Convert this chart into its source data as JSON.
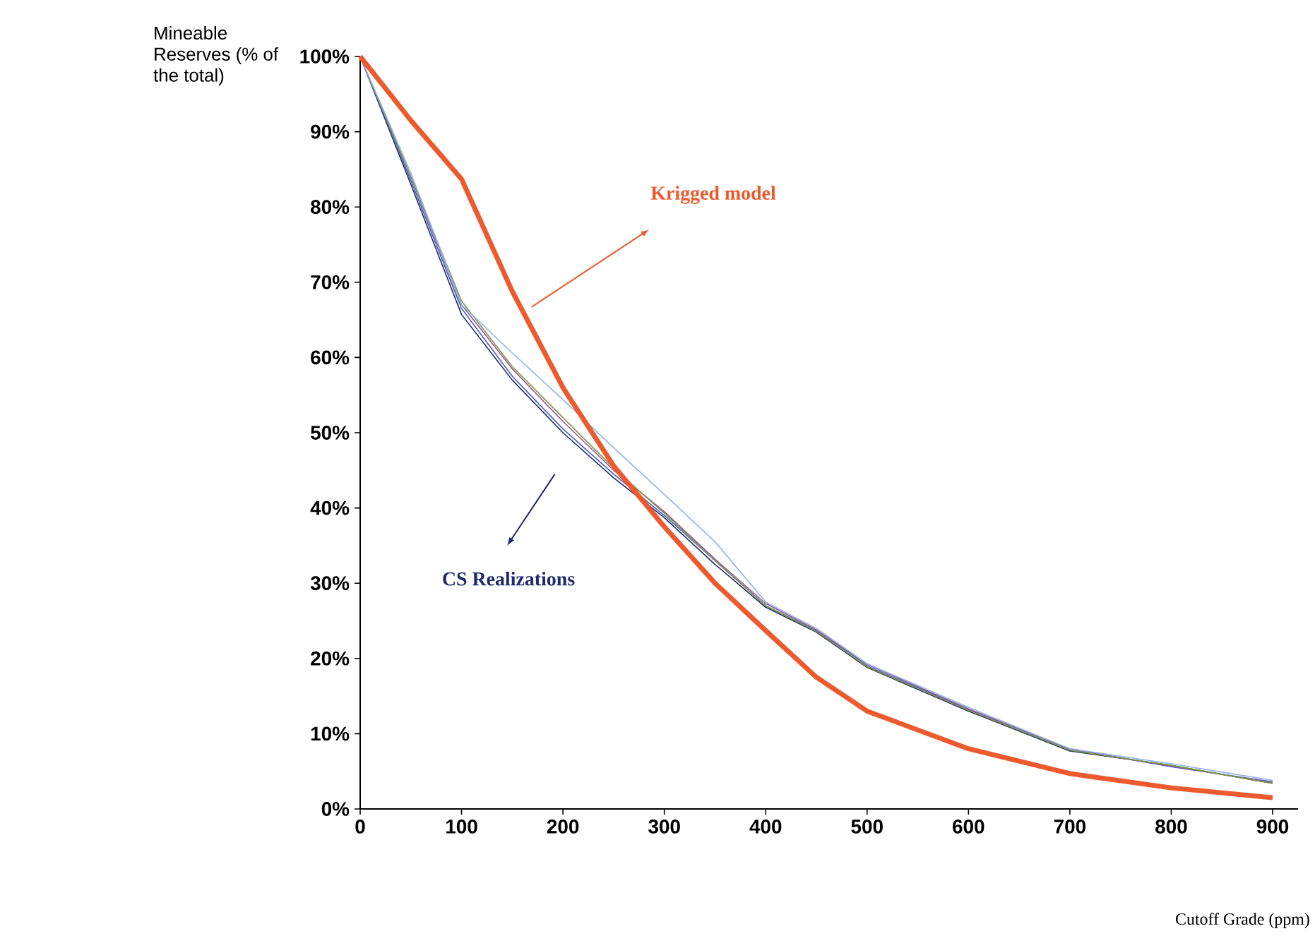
{
  "chart_data": {
    "type": "line",
    "ylabel": "Mineable Reserves (% of the total)",
    "xlabel": "Cutoff Grade (ppm)",
    "x": [
      0,
      50,
      100,
      150,
      200,
      250,
      300,
      350,
      400,
      450,
      500,
      600,
      700,
      800,
      900
    ],
    "series": [
      {
        "color": "#1f2a6e",
        "values": [
          100,
          83,
          65.7,
          57,
          50,
          44,
          38.7,
          32.5,
          26.8,
          23.5,
          18.8,
          13,
          7.7,
          5.8,
          3.4
        ]
      },
      {
        "color": "#4a5fc0",
        "values": [
          100,
          83.5,
          66.5,
          57.5,
          50.5,
          44.5,
          39,
          33,
          27,
          23.7,
          19,
          13.2,
          8,
          5.6,
          3.6
        ]
      },
      {
        "color": "#9b4fa0",
        "values": [
          100,
          84,
          67,
          58.5,
          51.5,
          45,
          39.5,
          33.2,
          27.3,
          23.8,
          19.2,
          13.3,
          7.9,
          5.7,
          3.5
        ]
      },
      {
        "color": "#7a9a40",
        "values": [
          100,
          84,
          67.5,
          58.8,
          52,
          45.3,
          39.3,
          33,
          27,
          23.6,
          18.9,
          13.1,
          7.8,
          5.8,
          3.4
        ]
      },
      {
        "color": "#8fb4e8",
        "values": [
          100,
          84.5,
          67,
          60.6,
          54.4,
          48,
          41.8,
          35.5,
          27.5,
          24,
          19.3,
          13.5,
          8,
          6,
          3.8
        ]
      },
      {
        "color": "#ec5a2e",
        "values": [
          100,
          91.5,
          83.7,
          68.8,
          56,
          45.6,
          37.5,
          30,
          23.7,
          17.5,
          13,
          8,
          4.7,
          2.8,
          1.5
        ]
      }
    ],
    "xlim": [
      0,
      925
    ],
    "ylim": [
      0,
      100
    ],
    "xticks": [
      0,
      100,
      200,
      300,
      400,
      500,
      600,
      700,
      800,
      900
    ],
    "yticks": [
      {
        "value": 0,
        "label": "0%"
      },
      {
        "value": 10,
        "label": "10%"
      },
      {
        "value": 20,
        "label": "20%"
      },
      {
        "value": 30,
        "label": "30%"
      },
      {
        "value": 40,
        "label": "40%"
      },
      {
        "value": 50,
        "label": "50%"
      },
      {
        "value": 60,
        "label": "60%"
      },
      {
        "value": 70,
        "label": "70%"
      },
      {
        "value": 80,
        "label": "80%"
      },
      {
        "value": 90,
        "label": "90%"
      },
      {
        "value": 100,
        "label": "100%"
      }
    ],
    "annotations": [
      "Krigged model",
      "CS Realizations"
    ],
    "grid": false
  }
}
